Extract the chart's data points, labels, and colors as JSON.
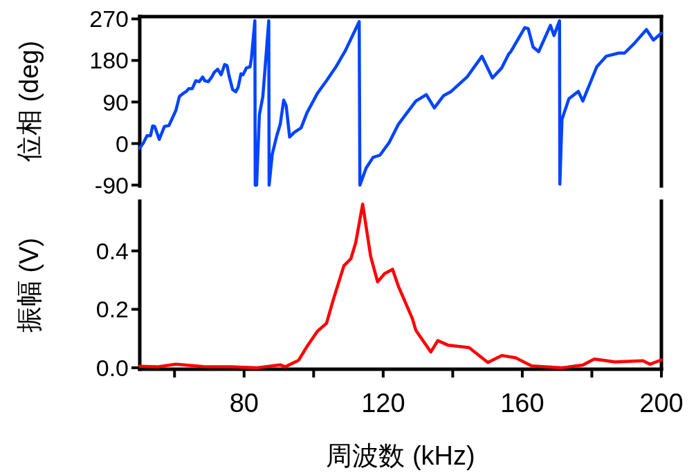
{
  "chart_data": [
    {
      "type": "line",
      "ylabel": "位相 (deg)",
      "xlim": [
        50,
        200
      ],
      "ylim": [
        -92,
        275
      ],
      "yticks": [
        -90,
        0,
        90,
        180,
        270
      ],
      "tick_labels": "y",
      "x": [
        50,
        51.1,
        52.1,
        53.1,
        53.7,
        54.3,
        55.6,
        57.1,
        58.4,
        60.4,
        61.4,
        62.4,
        63.4,
        64.1,
        65.1,
        66.1,
        67.1,
        68.1,
        68.7,
        69.7,
        70.7,
        71.4,
        72.4,
        73.4,
        74.4,
        75.1,
        75.7,
        76.7,
        77.6,
        78.3,
        79.1,
        79.7,
        80.7,
        81.7,
        82.1,
        83.1,
        83.2,
        83.6,
        84.4,
        85.4,
        87.1,
        87.2,
        88.1,
        89.4,
        90.4,
        91.4,
        92.1,
        93.1,
        94.4,
        96.4,
        98.1,
        101.1,
        103.7,
        106.4,
        109.1,
        113.1,
        113.3,
        115.1,
        117.1,
        119.1,
        121.7,
        124.4,
        126.4,
        129.4,
        132.4,
        134.7,
        137.4,
        139.4,
        144.1,
        148.4,
        151.4,
        154.1,
        156.1,
        156.7,
        160.7,
        161.7,
        163.1,
        164.7,
        168.1,
        169.1,
        169.7,
        170.7,
        170.8,
        171.4,
        173.4,
        176.1,
        177.4,
        181.4,
        184.1,
        187.7,
        189.4,
        192.1,
        195.7,
        197.7,
        200
      ],
      "series": [
        {
          "color": "#0044ff",
          "values": [
            -10,
            2,
            17,
            17,
            38,
            37,
            9,
            37,
            39,
            72,
            102,
            108,
            113,
            119,
            119,
            136,
            134,
            144,
            136,
            134,
            144,
            154,
            161,
            149,
            171,
            169,
            146,
            117,
            112,
            122,
            151,
            149,
            164,
            166,
            184,
            266,
            -90,
            -90,
            62,
            102,
            266,
            -90,
            -23,
            17,
            42,
            94,
            82,
            14,
            24,
            34,
            67,
            109,
            136,
            166,
            201,
            264,
            -90,
            -53,
            -30,
            -25,
            2,
            42,
            62,
            92,
            106,
            77,
            104,
            112,
            144,
            189,
            142,
            164,
            194,
            199,
            251,
            249,
            209,
            199,
            256,
            234,
            246,
            266,
            -88,
            52,
            97,
            113,
            92,
            166,
            189,
            196,
            196,
            216,
            247,
            224,
            239
          ]
        }
      ]
    },
    {
      "type": "line",
      "ylabel": "振幅 (V)",
      "xlabel": "周波数 (kHz)",
      "xlim": [
        50,
        200
      ],
      "ylim": [
        -0.005,
        0.57
      ],
      "yticks": [
        {
          "value": 0,
          "label": "0.0"
        },
        0.2,
        0.4
      ],
      "xticks": [
        {
          "value": 60,
          "label": null
        },
        80,
        {
          "value": 100,
          "label": null
        },
        120,
        {
          "value": 140,
          "label": null
        },
        160,
        {
          "value": 180,
          "label": null
        },
        200
      ],
      "x": [
        50,
        55,
        60.4,
        68.4,
        76.4,
        83.7,
        90.4,
        91.8,
        95.7,
        98.1,
        101.1,
        103.7,
        105.7,
        108.7,
        110.7,
        112.1,
        114.1,
        116.4,
        118.4,
        120.4,
        122.7,
        124.4,
        128.4,
        129.4,
        133.7,
        135.7,
        138.7,
        144.7,
        150.1,
        154.1,
        158.1,
        162.7,
        171.4,
        177.4,
        180.7,
        186.7,
        194.7,
        196.7,
        200
      ],
      "series": [
        {
          "color": "#ff0000",
          "values": [
            0.005,
            0.003,
            0.012,
            0.004,
            0.003,
            0,
            0.01,
            0.003,
            0.026,
            0.073,
            0.125,
            0.152,
            0.235,
            0.349,
            0.373,
            0.428,
            0.56,
            0.381,
            0.294,
            0.322,
            0.337,
            0.278,
            0.168,
            0.128,
            0.054,
            0.093,
            0.077,
            0.069,
            0.018,
            0.042,
            0.034,
            0.006,
            0,
            0.009,
            0.03,
            0.02,
            0.024,
            0.012,
            0.027
          ]
        }
      ]
    }
  ]
}
